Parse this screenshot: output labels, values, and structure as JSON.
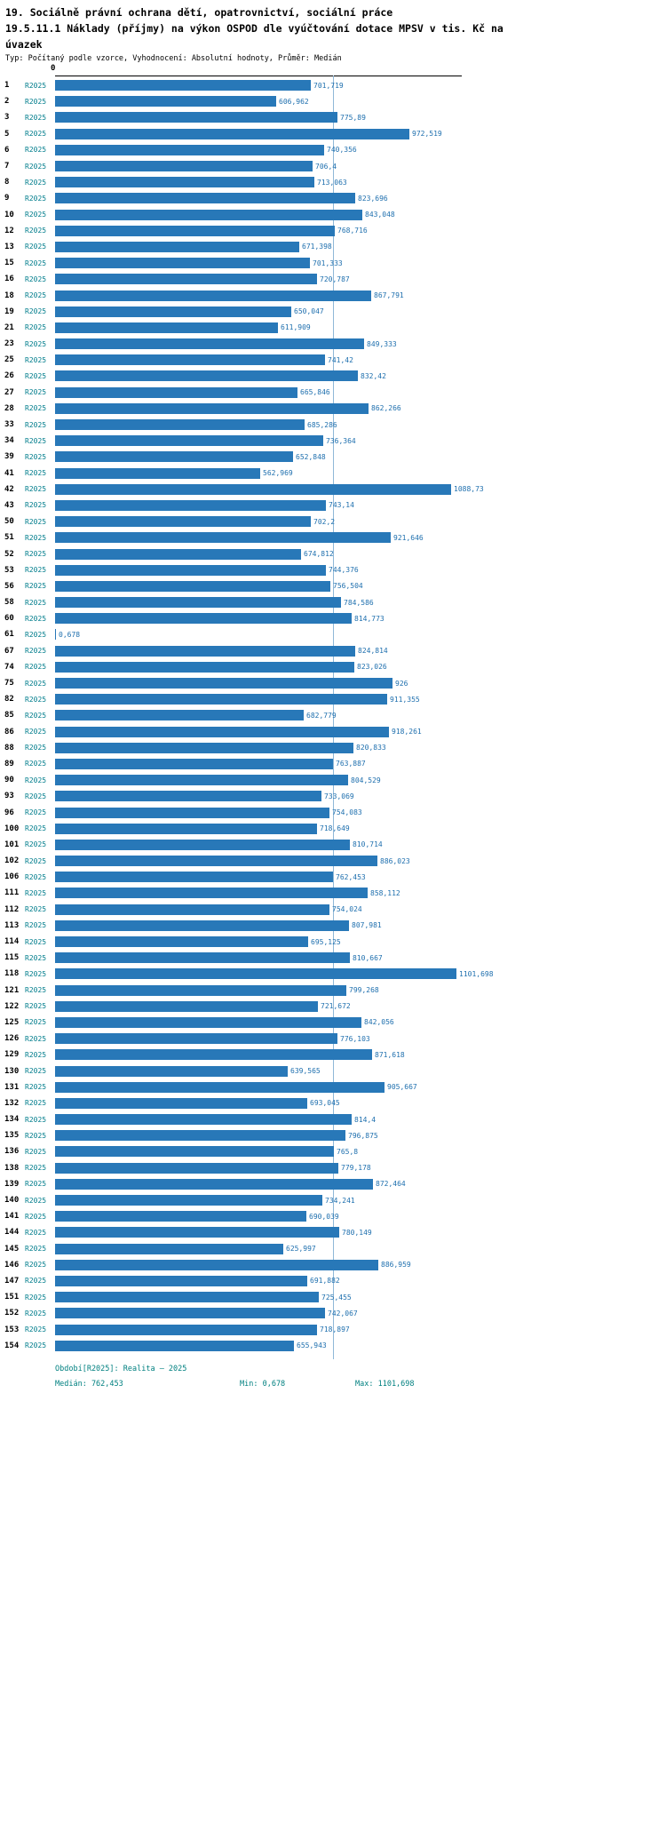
{
  "header": {
    "title_line1": "19. Sociálně právní ochrana dětí, opatrovnictví, sociální práce",
    "title_line2": "19.5.11.1 Náklady (příjmy) na výkon OSPOD dle vyúčtování dotace MPSV v tis. Kč na úvazek",
    "subtitle": "Typ: Počítaný podle vzorce, Vyhodnocení: Absolutní hodnoty, Průměr: Medián"
  },
  "footer": {
    "period": "Období[R2025]: Realita – 2025",
    "median_label": "Medián: 762,453",
    "min_label": "Min: 0,678",
    "max_label": "Max: 1101,698"
  },
  "colors": {
    "bar": "#2878b8",
    "value_label": "#1e6fae",
    "series_label": "#007d8c",
    "footer_text": "#008080",
    "median_line": "#8fb8d8"
  },
  "chart_data": {
    "type": "bar",
    "orientation": "horizontal",
    "title": "19.5.11.1 Náklady (příjmy) na výkon OSPOD dle vyúčtování dotace MPSV v tis. Kč na úvazek",
    "series_label": "R2025",
    "axis_zero_label": "0",
    "xlim": [
      0,
      1110
    ],
    "grid": false,
    "legend": false,
    "median": 762.453,
    "min": 0.678,
    "max": 1101.698,
    "categories": [
      "1",
      "2",
      "3",
      "5",
      "6",
      "7",
      "8",
      "9",
      "10",
      "12",
      "13",
      "15",
      "16",
      "18",
      "19",
      "21",
      "23",
      "25",
      "26",
      "27",
      "28",
      "33",
      "34",
      "39",
      "41",
      "42",
      "43",
      "50",
      "51",
      "52",
      "53",
      "56",
      "58",
      "60",
      "61",
      "67",
      "74",
      "75",
      "82",
      "85",
      "86",
      "88",
      "89",
      "90",
      "93",
      "96",
      "100",
      "101",
      "102",
      "106",
      "111",
      "112",
      "113",
      "114",
      "115",
      "118",
      "121",
      "122",
      "125",
      "126",
      "129",
      "130",
      "131",
      "132",
      "134",
      "135",
      "136",
      "138",
      "139",
      "140",
      "141",
      "144",
      "145",
      "146",
      "147",
      "151",
      "152",
      "153",
      "154"
    ],
    "values": [
      701.719,
      606.962,
      775.89,
      972.519,
      740.356,
      706.4,
      713.063,
      823.696,
      843.048,
      768.716,
      671.398,
      701.333,
      720.787,
      867.791,
      650.047,
      611.909,
      849.333,
      741.42,
      832.42,
      665.846,
      862.266,
      685.286,
      736.364,
      652.848,
      562.969,
      1088.73,
      743.14,
      702.2,
      921.646,
      674.812,
      744.376,
      756.504,
      784.586,
      814.773,
      0.678,
      824.814,
      823.026,
      926,
      911.355,
      682.779,
      918.261,
      820.833,
      763.887,
      804.529,
      733.069,
      754.083,
      718.649,
      810.714,
      886.023,
      762.453,
      858.112,
      754.024,
      807.981,
      695.125,
      810.667,
      1101.698,
      799.268,
      721.672,
      842.056,
      776.103,
      871.618,
      639.565,
      905.667,
      693.045,
      814.4,
      796.875,
      765.8,
      779.178,
      872.464,
      734.241,
      690.039,
      780.149,
      625.997,
      886.959,
      691.882,
      725.455,
      742.067,
      718.897,
      655.943
    ],
    "value_labels": [
      "701,719",
      "606,962",
      "775,89",
      "972,519",
      "740,356",
      "706,4",
      "713,063",
      "823,696",
      "843,048",
      "768,716",
      "671,398",
      "701,333",
      "720,787",
      "867,791",
      "650,047",
      "611,909",
      "849,333",
      "741,42",
      "832,42",
      "665,846",
      "862,266",
      "685,286",
      "736,364",
      "652,848",
      "562,969",
      "1088,73",
      "743,14",
      "702,2",
      "921,646",
      "674,812",
      "744,376",
      "756,504",
      "784,586",
      "814,773",
      "0,678",
      "824,814",
      "823,026",
      "926",
      "911,355",
      "682,779",
      "918,261",
      "820,833",
      "763,887",
      "804,529",
      "733,069",
      "754,083",
      "718,649",
      "810,714",
      "886,023",
      "762,453",
      "858,112",
      "754,024",
      "807,981",
      "695,125",
      "810,667",
      "1101,698",
      "799,268",
      "721,672",
      "842,056",
      "776,103",
      "871,618",
      "639,565",
      "905,667",
      "693,045",
      "814,4",
      "796,875",
      "765,8",
      "779,178",
      "872,464",
      "734,241",
      "690,039",
      "780,149",
      "625,997",
      "886,959",
      "691,882",
      "725,455",
      "742,067",
      "718,897",
      "655,943"
    ]
  }
}
